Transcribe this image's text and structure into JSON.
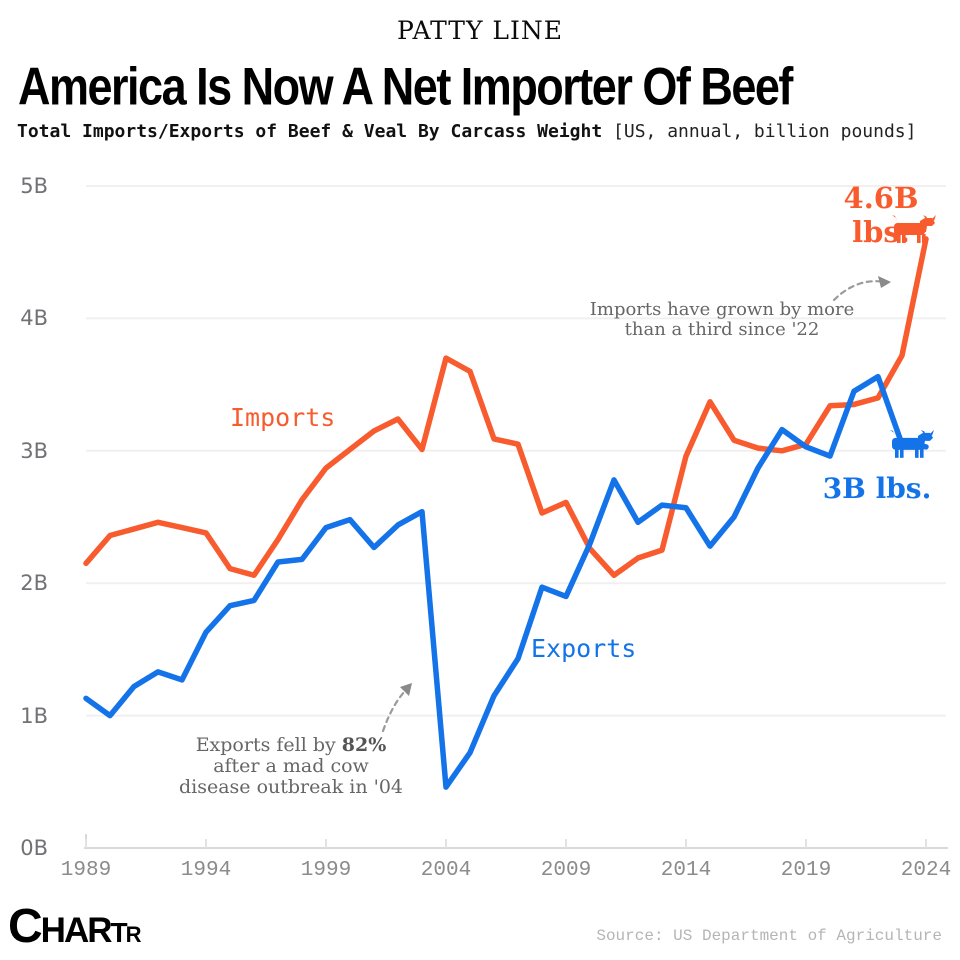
{
  "header": {
    "kicker": "PATTY LINE",
    "title": "America Is Now A Net Importer Of Beef",
    "subtitle_bold": "Total Imports/Exports of Beef & Veal By Carcass Weight ",
    "subtitle_note": "[US, annual, billion pounds]"
  },
  "chart_data": {
    "type": "line",
    "title": "America Is Now A Net Importer Of Beef",
    "subtitle": "Total Imports/Exports of Beef & Veal By Carcass Weight [US, annual, billion pounds]",
    "xlim": [
      1989,
      2024
    ],
    "ylim": [
      0,
      5
    ],
    "grid": "horizontal",
    "x": [
      1989,
      1990,
      1991,
      1992,
      1993,
      1994,
      1995,
      1996,
      1997,
      1998,
      1999,
      2000,
      2001,
      2002,
      2003,
      2004,
      2005,
      2006,
      2007,
      2008,
      2009,
      2010,
      2011,
      2012,
      2013,
      2014,
      2015,
      2016,
      2017,
      2018,
      2019,
      2020,
      2021,
      2022,
      2023,
      2024
    ],
    "series": [
      {
        "name": "Imports",
        "color": "#F75B2E",
        "end_label": "4.6B lbs.",
        "end_marker": "cow-icon",
        "values": [
          2.15,
          2.36,
          2.41,
          2.46,
          2.42,
          2.38,
          2.11,
          2.06,
          2.33,
          2.63,
          2.87,
          3.01,
          3.15,
          3.24,
          3.01,
          3.7,
          3.6,
          3.09,
          3.05,
          2.53,
          2.61,
          2.26,
          2.06,
          2.19,
          2.25,
          2.96,
          3.37,
          3.08,
          3.02,
          3.0,
          3.05,
          3.34,
          3.35,
          3.4,
          3.72,
          4.6
        ]
      },
      {
        "name": "Exports",
        "color": "#1473E8",
        "end_label": "3B lbs.",
        "end_marker": "cow-icon",
        "values": [
          1.13,
          1.0,
          1.22,
          1.33,
          1.27,
          1.63,
          1.83,
          1.87,
          2.16,
          2.18,
          2.42,
          2.48,
          2.27,
          2.44,
          2.54,
          0.46,
          0.72,
          1.15,
          1.43,
          1.97,
          1.9,
          2.3,
          2.78,
          2.46,
          2.59,
          2.57,
          2.28,
          2.5,
          2.87,
          3.16,
          3.03,
          2.96,
          3.45,
          3.56,
          3.05,
          3.03
        ]
      }
    ],
    "y_ticks": [
      {
        "value": 0,
        "label": "0B"
      },
      {
        "value": 1,
        "label": "1B"
      },
      {
        "value": 2,
        "label": "2B"
      },
      {
        "value": 3,
        "label": "3B"
      },
      {
        "value": 4,
        "label": "4B"
      },
      {
        "value": 5,
        "label": "5B"
      }
    ],
    "x_ticks": [
      {
        "value": 1989,
        "label": "1989"
      },
      {
        "value": 1994,
        "label": "1994"
      },
      {
        "value": 1999,
        "label": "1999"
      },
      {
        "value": 2004,
        "label": "2004"
      },
      {
        "value": 2009,
        "label": "2009"
      },
      {
        "value": 2014,
        "label": "2014"
      },
      {
        "value": 2019,
        "label": "2019"
      },
      {
        "value": 2024,
        "label": "2024"
      }
    ],
    "annotations": [
      {
        "id": "imports-note",
        "line1": "Imports have grown by more",
        "line2": "than a third since '22"
      },
      {
        "id": "exports-note",
        "line1_pre": "Exports fell by ",
        "line1_bold": "82%",
        "line2": "after a mad cow",
        "line3": "disease outbreak in '04"
      }
    ]
  },
  "footer": {
    "logo_letters": [
      "C",
      "H",
      "A",
      "R",
      "T",
      "R"
    ],
    "source": "Source: US Department of Agriculture"
  }
}
